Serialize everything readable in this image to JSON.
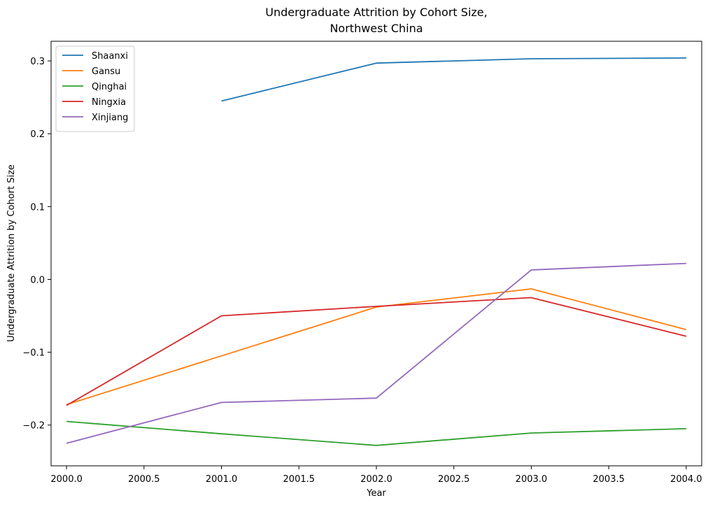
{
  "chart_data": {
    "type": "line",
    "title_lines": [
      "Undergraduate Attrition by Cohort Size,",
      "Northwest China"
    ],
    "xlabel": "Year",
    "ylabel": "Undergraduate Attrition by Cohort Size",
    "xlim": [
      1999.9,
      2004.1
    ],
    "ylim": [
      -0.256,
      0.327
    ],
    "x_ticks": [
      2000.0,
      2000.5,
      2001.0,
      2001.5,
      2002.0,
      2002.5,
      2003.0,
      2003.5,
      2004.0
    ],
    "x_tick_labels": [
      "2000.0",
      "2000.5",
      "2001.0",
      "2001.5",
      "2002.0",
      "2002.5",
      "2003.0",
      "2003.5",
      "2004.0"
    ],
    "y_ticks": [
      -0.2,
      -0.1,
      0.0,
      0.1,
      0.2,
      0.3
    ],
    "y_tick_labels": [
      "−0.2",
      "−0.1",
      "0.0",
      "0.1",
      "0.2",
      "0.3"
    ],
    "grid": false,
    "legend_position": "top-left",
    "x": [
      2000,
      2001,
      2002,
      2003,
      2004
    ],
    "series": [
      {
        "name": "Shaanxi",
        "color": "#1f77b4",
        "values": [
          null,
          0.245,
          0.297,
          0.303,
          0.304
        ]
      },
      {
        "name": "Gansu",
        "color": "#ff7f0e",
        "values": [
          -0.172,
          -0.105,
          -0.038,
          -0.013,
          -0.069
        ]
      },
      {
        "name": "Qinghai",
        "color": "#2ca02c",
        "values": [
          -0.195,
          -0.212,
          -0.228,
          -0.211,
          -0.205
        ]
      },
      {
        "name": "Ningxia",
        "color": "#d62728",
        "values": [
          -0.173,
          -0.05,
          -0.037,
          -0.025,
          -0.078
        ]
      },
      {
        "name": "Xinjiang",
        "color": "#9467bd",
        "values": [
          -0.225,
          -0.169,
          -0.163,
          0.013,
          0.022
        ]
      }
    ]
  }
}
